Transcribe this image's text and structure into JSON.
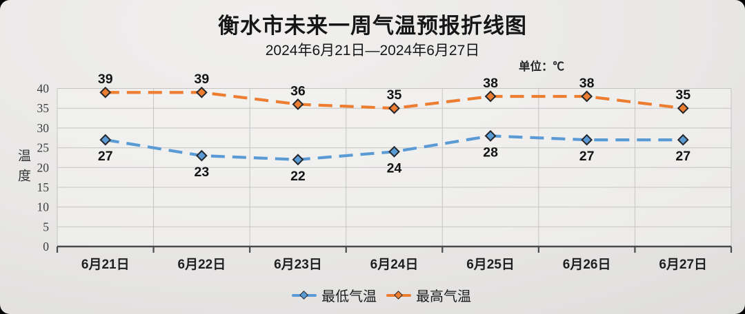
{
  "header": {
    "title": "衡水市未来一周气温预报折线图",
    "subtitle": "2024年6月21日—2024年6月27日",
    "unit_label": "单位：℃"
  },
  "chart_data": {
    "type": "line",
    "title": "衡水市未来一周气温预报折线图",
    "subtitle": "2024年6月21日—2024年6月27日",
    "unit": "℃",
    "xlabel": "",
    "ylabel": "温度",
    "categories": [
      "6月21日",
      "6月22日",
      "6月23日",
      "6月24日",
      "6月25日",
      "6月26日",
      "6月27日"
    ],
    "series": [
      {
        "name": "最低气温",
        "values": [
          27,
          23,
          22,
          24,
          28,
          27,
          27
        ],
        "color": "#5B9BD5",
        "label_position": "below"
      },
      {
        "name": "最高气温",
        "values": [
          39,
          39,
          36,
          35,
          38,
          38,
          35
        ],
        "color": "#ED7D31",
        "label_position": "above"
      }
    ],
    "ylim": [
      0,
      40
    ],
    "ytick_step": 5,
    "grid": true,
    "line_style": "dashed",
    "marker": "diamond",
    "legend_position": "bottom",
    "colors": {
      "gridline": "#c5c4c3",
      "axis": "#4a4a4a",
      "marker_border": "#23262b",
      "plot_fill": "#f5f5f4"
    }
  }
}
